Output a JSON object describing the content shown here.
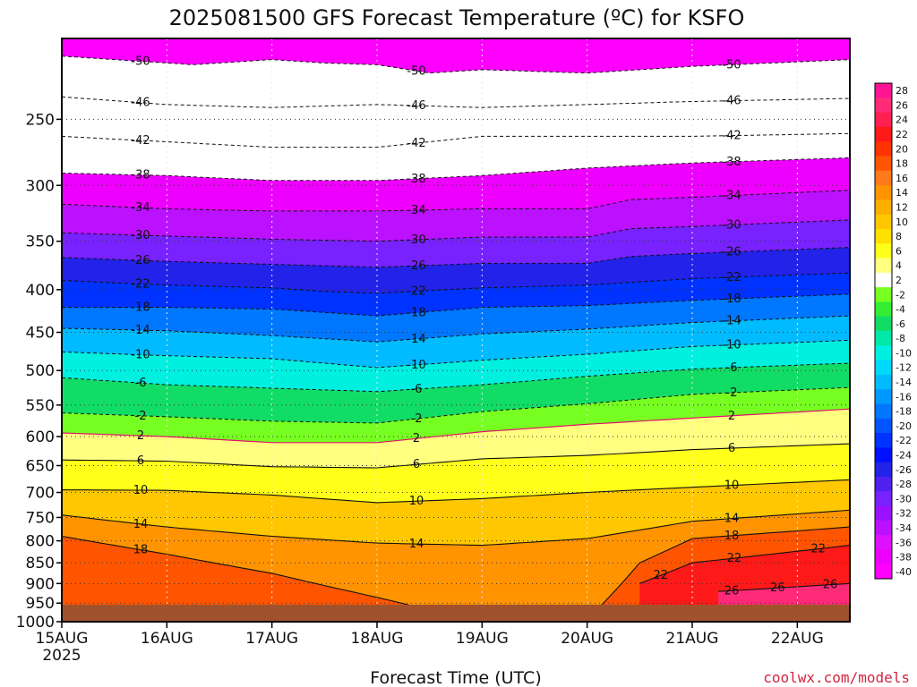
{
  "chart_data": {
    "type": "heatmap",
    "title": "2025081500 GFS Forecast Temperature (ºC) for KSFO",
    "xlabel": "Forecast Time (UTC)",
    "ylabel": "",
    "credit": "coolwx.com/models",
    "x_range_hours": [
      0,
      180
    ],
    "x_ticks": [
      {
        "label": "15AUG",
        "sub": "2025",
        "hour": 0
      },
      {
        "label": "16AUG",
        "sub": "",
        "hour": 24
      },
      {
        "label": "17AUG",
        "sub": "",
        "hour": 48
      },
      {
        "label": "18AUG",
        "sub": "",
        "hour": 72
      },
      {
        "label": "19AUG",
        "sub": "",
        "hour": 96
      },
      {
        "label": "20AUG",
        "sub": "",
        "hour": 120
      },
      {
        "label": "21AUG",
        "sub": "",
        "hour": 144
      },
      {
        "label": "22AUG",
        "sub": "",
        "hour": 168
      }
    ],
    "y_axis": "pressure (hPa, log scale, inverted)",
    "y_range": [
      1000,
      200
    ],
    "y_ticks": [
      250,
      300,
      350,
      400,
      450,
      500,
      550,
      600,
      650,
      700,
      750,
      800,
      850,
      900,
      950,
      1000
    ],
    "grid": true,
    "colorbar_levels": [
      28,
      26,
      24,
      22,
      20,
      18,
      16,
      14,
      12,
      10,
      8,
      6,
      4,
      2,
      -2,
      -4,
      -6,
      -8,
      -10,
      -12,
      -14,
      -16,
      -18,
      -20,
      -22,
      -24,
      -26,
      -28,
      -30,
      -32,
      -34,
      -36,
      -38,
      -40
    ],
    "colorbar_colors": [
      "#ff1493",
      "#ff2b78",
      "#ff2050",
      "#ff1a1a",
      "#ff3300",
      "#ff5500",
      "#ff7a1a",
      "#ff9400",
      "#ffad00",
      "#ffc700",
      "#ffe000",
      "#ffff1a",
      "#ffff80",
      "#ffffff",
      "#77ff22",
      "#33ee33",
      "#11dd66",
      "#00e8a8",
      "#00f0e0",
      "#00d8ff",
      "#00bbff",
      "#0099ff",
      "#0077ff",
      "#0055ff",
      "#0033ff",
      "#0010ff",
      "#2222e8",
      "#5020ee",
      "#7722ff",
      "#9911ff",
      "#bb11ff",
      "#dd11ff",
      "#ee00ff",
      "#ff00ff"
    ],
    "series": [
      {
        "name": "-50",
        "values": [
          [
            0,
            210
          ],
          [
            30,
            215
          ],
          [
            48,
            212
          ],
          [
            60,
            214
          ],
          [
            72,
            215
          ],
          [
            84,
            220
          ],
          [
            96,
            218
          ],
          [
            120,
            220
          ],
          [
            144,
            216
          ],
          [
            180,
            212
          ]
        ]
      },
      {
        "name": "-46",
        "values": [
          [
            0,
            235
          ],
          [
            24,
            240
          ],
          [
            48,
            242
          ],
          [
            72,
            240
          ],
          [
            96,
            242
          ],
          [
            120,
            240
          ],
          [
            144,
            238
          ],
          [
            180,
            236
          ]
        ]
      },
      {
        "name": "-42",
        "values": [
          [
            0,
            262
          ],
          [
            24,
            266
          ],
          [
            48,
            270
          ],
          [
            72,
            270
          ],
          [
            96,
            262
          ],
          [
            120,
            262
          ],
          [
            144,
            262
          ],
          [
            180,
            260
          ]
        ]
      },
      {
        "name": "-38",
        "values": [
          [
            0,
            290
          ],
          [
            24,
            292
          ],
          [
            48,
            296
          ],
          [
            72,
            296
          ],
          [
            96,
            292
          ],
          [
            120,
            286
          ],
          [
            144,
            282
          ],
          [
            180,
            278
          ]
        ]
      },
      {
        "name": "-34",
        "values": [
          [
            0,
            316
          ],
          [
            24,
            320
          ],
          [
            48,
            322
          ],
          [
            72,
            322
          ],
          [
            96,
            320
          ],
          [
            120,
            320
          ],
          [
            130,
            312
          ],
          [
            144,
            310
          ],
          [
            180,
            304
          ]
        ]
      },
      {
        "name": "-30",
        "values": [
          [
            0,
            342
          ],
          [
            24,
            345
          ],
          [
            48,
            348
          ],
          [
            72,
            350
          ],
          [
            96,
            346
          ],
          [
            120,
            346
          ],
          [
            130,
            338
          ],
          [
            144,
            336
          ],
          [
            180,
            330
          ]
        ]
      },
      {
        "name": "-26",
        "values": [
          [
            0,
            366
          ],
          [
            24,
            370
          ],
          [
            48,
            373
          ],
          [
            72,
            376
          ],
          [
            96,
            372
          ],
          [
            120,
            372
          ],
          [
            130,
            365
          ],
          [
            144,
            362
          ],
          [
            180,
            356
          ]
        ]
      },
      {
        "name": "-22",
        "values": [
          [
            0,
            390
          ],
          [
            24,
            395
          ],
          [
            48,
            398
          ],
          [
            60,
            402
          ],
          [
            72,
            404
          ],
          [
            96,
            398
          ],
          [
            120,
            395
          ],
          [
            144,
            388
          ],
          [
            180,
            382
          ]
        ]
      },
      {
        "name": "-18",
        "values": [
          [
            0,
            420
          ],
          [
            24,
            420
          ],
          [
            48,
            422
          ],
          [
            72,
            430
          ],
          [
            96,
            420
          ],
          [
            120,
            418
          ],
          [
            144,
            412
          ],
          [
            180,
            405
          ]
        ]
      },
      {
        "name": "-14",
        "values": [
          [
            0,
            445
          ],
          [
            24,
            448
          ],
          [
            48,
            454
          ],
          [
            72,
            462
          ],
          [
            96,
            452
          ],
          [
            120,
            446
          ],
          [
            144,
            438
          ],
          [
            180,
            430
          ]
        ]
      },
      {
        "name": "-10",
        "values": [
          [
            0,
            475
          ],
          [
            24,
            480
          ],
          [
            48,
            484
          ],
          [
            72,
            496
          ],
          [
            96,
            486
          ],
          [
            120,
            478
          ],
          [
            144,
            468
          ],
          [
            180,
            460
          ]
        ]
      },
      {
        "name": "-6",
        "values": [
          [
            0,
            510
          ],
          [
            24,
            520
          ],
          [
            48,
            525
          ],
          [
            72,
            530
          ],
          [
            96,
            520
          ],
          [
            120,
            508
          ],
          [
            144,
            498
          ],
          [
            180,
            490
          ]
        ]
      },
      {
        "name": "-2",
        "values": [
          [
            0,
            562
          ],
          [
            24,
            568
          ],
          [
            48,
            575
          ],
          [
            72,
            578
          ],
          [
            96,
            560
          ],
          [
            120,
            548
          ],
          [
            144,
            534
          ],
          [
            180,
            524
          ]
        ]
      },
      {
        "name": "2",
        "values": [
          [
            0,
            594
          ],
          [
            24,
            600
          ],
          [
            48,
            610
          ],
          [
            72,
            610
          ],
          [
            96,
            592
          ],
          [
            120,
            580
          ],
          [
            144,
            570
          ],
          [
            180,
            556
          ]
        ]
      },
      {
        "name": "6",
        "values": [
          [
            0,
            640
          ],
          [
            24,
            642
          ],
          [
            48,
            652
          ],
          [
            72,
            654
          ],
          [
            96,
            638
          ],
          [
            120,
            632
          ],
          [
            144,
            622
          ],
          [
            180,
            612
          ]
        ]
      },
      {
        "name": "10",
        "values": [
          [
            0,
            695
          ],
          [
            24,
            696
          ],
          [
            48,
            705
          ],
          [
            72,
            720
          ],
          [
            96,
            712
          ],
          [
            120,
            700
          ],
          [
            144,
            690
          ],
          [
            180,
            676
          ]
        ]
      },
      {
        "name": "14",
        "values": [
          [
            0,
            745
          ],
          [
            24,
            770
          ],
          [
            48,
            790
          ],
          [
            72,
            805
          ],
          [
            96,
            810
          ],
          [
            120,
            795
          ],
          [
            144,
            758
          ],
          [
            180,
            735
          ]
        ]
      },
      {
        "name": "18",
        "values": [
          [
            0,
            790
          ],
          [
            24,
            830
          ],
          [
            48,
            875
          ],
          [
            72,
            935
          ],
          [
            96,
            1000
          ],
          [
            120,
            995
          ],
          [
            132,
            850
          ],
          [
            144,
            795
          ],
          [
            180,
            770
          ]
        ]
      },
      {
        "name": "22",
        "values": [
          [
            132,
            900
          ],
          [
            144,
            850
          ],
          [
            180,
            810
          ]
        ]
      },
      {
        "name": "26",
        "values": [
          [
            150,
            920
          ],
          [
            180,
            900
          ]
        ]
      }
    ]
  }
}
